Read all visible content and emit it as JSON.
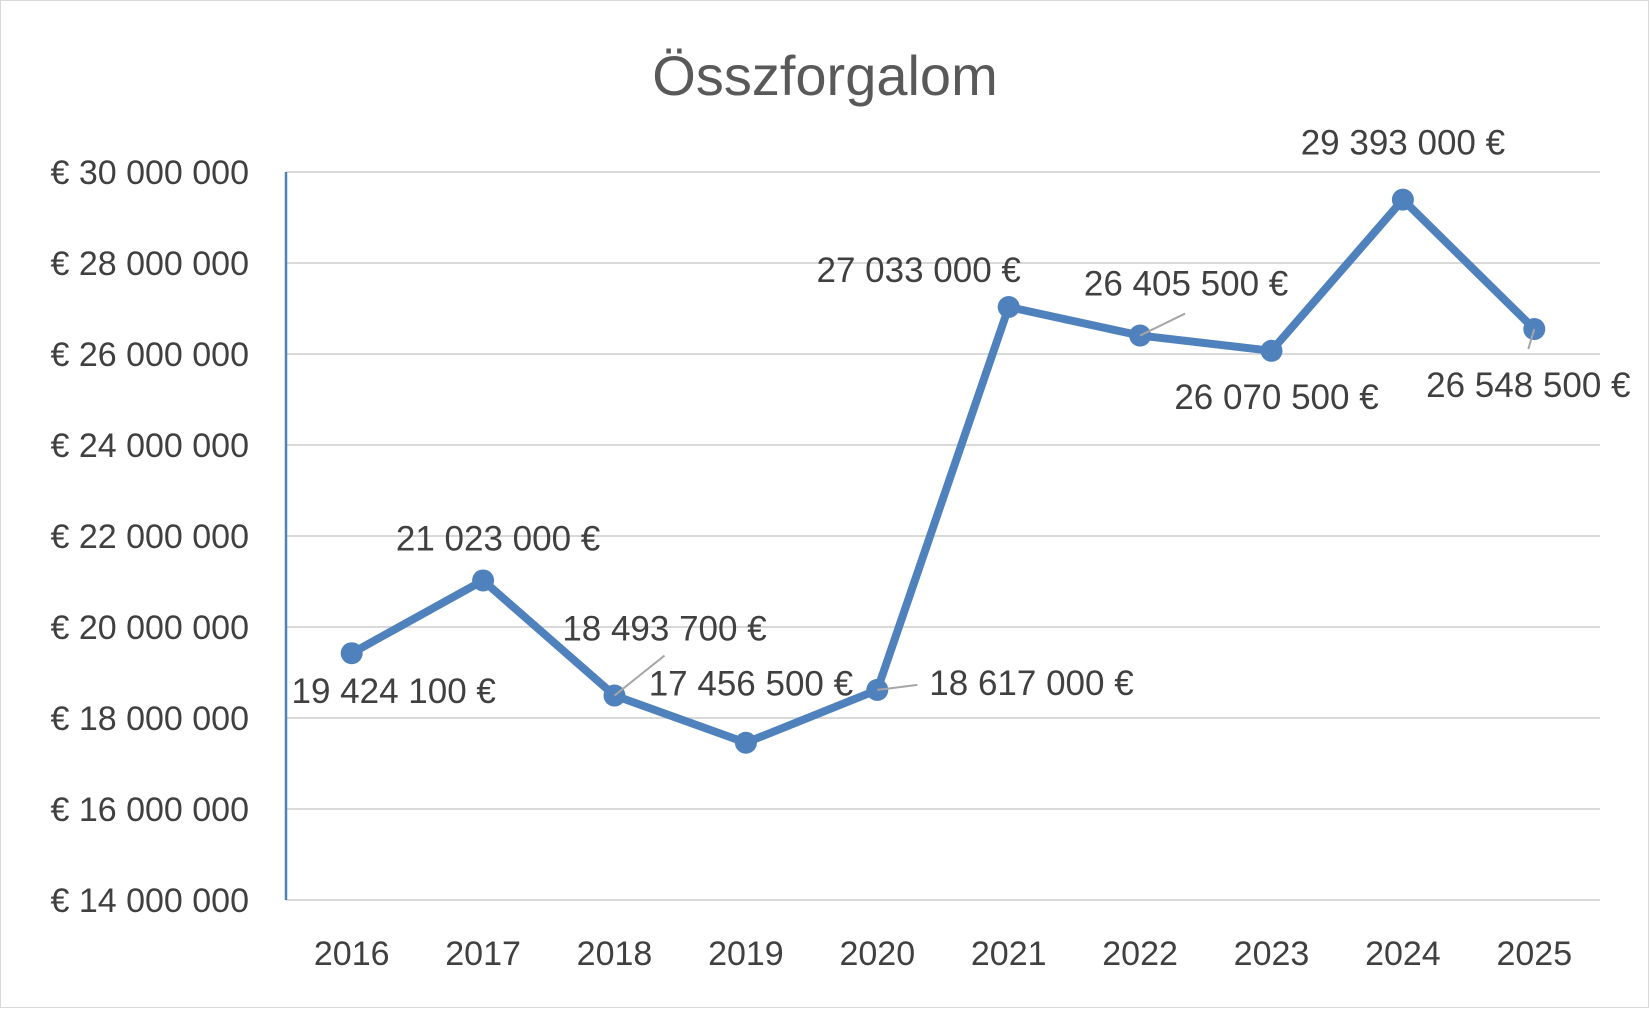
{
  "chart_data": {
    "type": "line",
    "title": "Összforgalom",
    "categories": [
      "2016",
      "2017",
      "2018",
      "2019",
      "2020",
      "2021",
      "2022",
      "2023",
      "2024",
      "2025"
    ],
    "series": [
      {
        "values": [
          19424100,
          21023000,
          18493700,
          17456500,
          18617000,
          27033000,
          26405500,
          26070500,
          29393000,
          26548500
        ],
        "data_labels": [
          "19 424 100 €",
          "21 023 000 €",
          "18 493 700 €",
          "17 456 500 €",
          "18 617 000 €",
          "27 033 000 €",
          "26 405 500 €",
          "26 070 500 €",
          "29 393 000 €",
          "26 548 500 €"
        ],
        "color": "#4f81bd"
      }
    ],
    "ylim": [
      14000000,
      30000000
    ],
    "yticks": [
      14000000,
      16000000,
      18000000,
      20000000,
      22000000,
      24000000,
      26000000,
      28000000,
      30000000
    ],
    "ytick_labels": [
      "€ 14 000 000",
      "€ 16 000 000",
      "€ 18 000 000",
      "€ 20 000 000",
      "€ 22 000 000",
      "€ 24 000 000",
      "€ 26 000 000",
      "€ 28 000 000",
      "€ 30 000 000"
    ],
    "xlabel": "",
    "ylabel": "",
    "grid": true,
    "legend": "none"
  }
}
